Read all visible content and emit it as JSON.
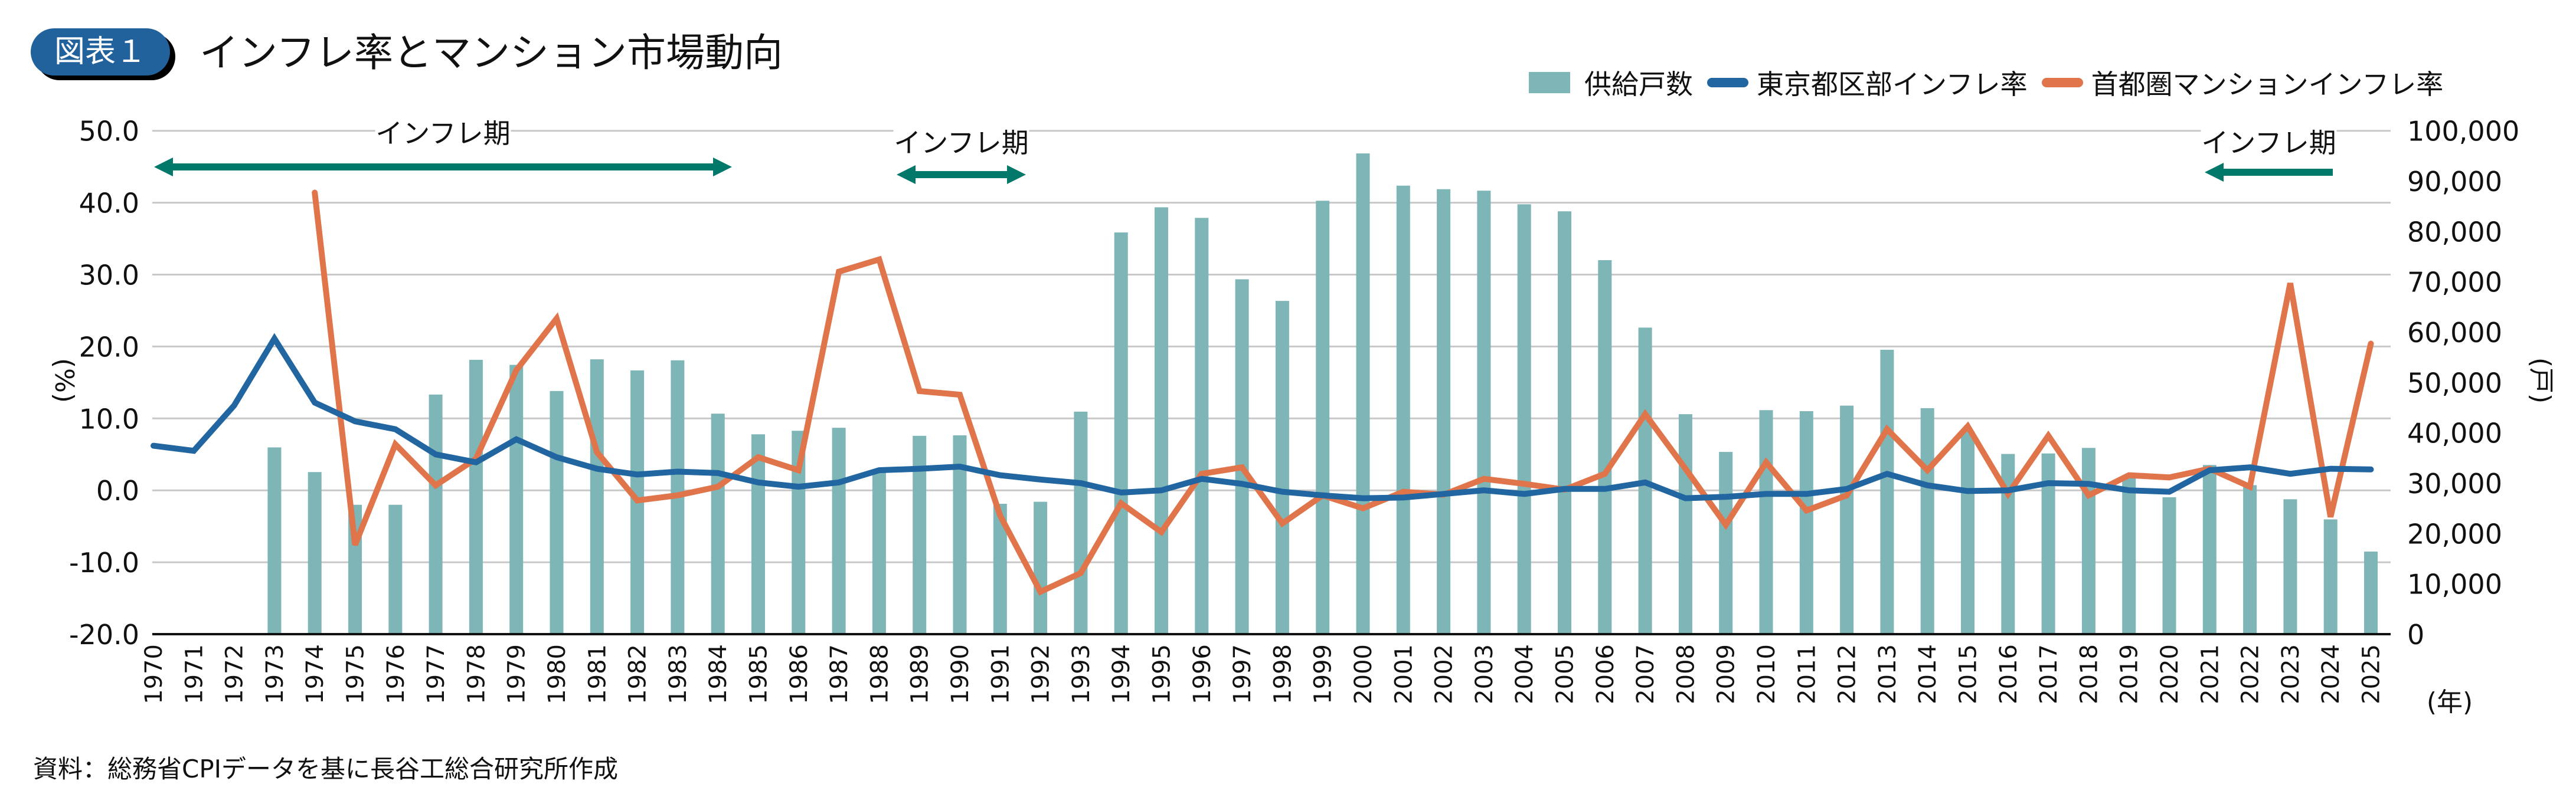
{
  "header": {
    "badge": "図表１",
    "title": "インフレ率とマンション市場動向"
  },
  "legend": {
    "bar_label": "供給戸数",
    "tokyo_label": "東京都区部インフレ率",
    "condo_label": "首都圏マンションインフレ率"
  },
  "source": "資料：総務省CPIデータを基に長谷工総合研究所作成",
  "colors": {
    "bar": "#7EB5B6",
    "tokyo": "#2166A0",
    "condo": "#E0744A",
    "arrow": "#00796B",
    "grid": "#C8C8C8",
    "badge": "#22629C"
  },
  "annotations": [
    {
      "label": "インフレ期",
      "from": 1970,
      "to": 1984,
      "direction": "both"
    },
    {
      "label": "インフレ期",
      "from": 1988,
      "to": 1991,
      "direction": "both"
    },
    {
      "label": "インフレ期",
      "from": 2023,
      "to": 2020,
      "direction": "left"
    }
  ],
  "chart_data": {
    "type": "bar+line",
    "title": "インフレ率とマンション市場動向",
    "categories": [
      "1970",
      "1971",
      "1972",
      "1973",
      "1974",
      "1975",
      "1976",
      "1977",
      "1978",
      "1979",
      "1980",
      "1981",
      "1982",
      "1983",
      "1984",
      "1985",
      "1986",
      "1987",
      "1988",
      "1989",
      "1990",
      "1991",
      "1992",
      "1993",
      "1994",
      "1995",
      "1996",
      "1997",
      "1998",
      "1999",
      "2000",
      "2001",
      "2002",
      "2003",
      "2004",
      "2005",
      "2006",
      "2007",
      "2008",
      "2009",
      "2010",
      "2011",
      "2012",
      "2013",
      "2014",
      "2015",
      "2016",
      "2017",
      "2018",
      "2019",
      "2020",
      "2021",
      "2022",
      "2023",
      "2024",
      "2025"
    ],
    "xlabel": "(年)",
    "ylabel_left": "(%)",
    "ylabel_right": "(戸)",
    "ylim_left": [
      -20,
      50
    ],
    "ylim_right": [
      0,
      100000
    ],
    "yticks_left": [
      "50.0",
      "40.0",
      "30.0",
      "20.0",
      "10.0",
      "0.0",
      "-10.0",
      "-20.0"
    ],
    "yticks_right": [
      "100,000",
      "90,000",
      "80,000",
      "70,000",
      "60,000",
      "50,000",
      "40,000",
      "30,000",
      "20,000",
      "10,000",
      "0"
    ],
    "grid": true,
    "legend_position": "top-right",
    "series": [
      {
        "name": "供給戸数",
        "type": "bar",
        "axis": "right",
        "values": [
          null,
          null,
          null,
          37100,
          32200,
          25700,
          25700,
          47600,
          54500,
          53500,
          48300,
          54600,
          52400,
          54400,
          43800,
          39700,
          40400,
          41000,
          32200,
          39400,
          39500,
          25900,
          26300,
          44200,
          79800,
          84800,
          82700,
          70500,
          66200,
          86100,
          95500,
          89100,
          88400,
          88100,
          85400,
          84000,
          74300,
          60900,
          43700,
          36200,
          44500,
          44300,
          45400,
          56500,
          44900,
          40300,
          35800,
          35900,
          37000,
          31100,
          27200,
          33600,
          29600,
          26800,
          22800,
          16400
        ]
      },
      {
        "name": "東京都区部インフレ率",
        "type": "line",
        "axis": "left",
        "values": [
          6.2,
          5.5,
          11.8,
          21.1,
          12.2,
          9.6,
          8.5,
          5.0,
          3.9,
          7.1,
          4.6,
          3.0,
          2.2,
          2.6,
          2.4,
          1.1,
          0.5,
          1.1,
          2.8,
          3.0,
          3.3,
          2.1,
          1.5,
          1.0,
          -0.3,
          0.0,
          1.6,
          0.9,
          -0.2,
          -0.7,
          -1.1,
          -1.0,
          -0.5,
          0.0,
          -0.5,
          0.2,
          0.2,
          1.1,
          -1.1,
          -0.9,
          -0.5,
          -0.5,
          0.2,
          2.3,
          0.7,
          -0.1,
          0.0,
          1.0,
          0.9,
          0.0,
          -0.2,
          2.8,
          3.2,
          2.3,
          3.0,
          2.9
        ]
      },
      {
        "name": "首都圏マンションインフレ率",
        "type": "line",
        "axis": "left",
        "values": [
          null,
          null,
          null,
          null,
          41.4,
          -7.6,
          6.4,
          0.7,
          4.4,
          16.7,
          23.9,
          5.3,
          -1.4,
          -0.7,
          0.5,
          4.6,
          2.8,
          30.4,
          32.1,
          13.8,
          13.3,
          -3.5,
          -14.1,
          -11.5,
          -1.8,
          -5.8,
          2.3,
          3.2,
          -4.6,
          -0.7,
          -2.5,
          -0.2,
          -0.6,
          1.6,
          0.9,
          0.1,
          2.3,
          10.6,
          3.0,
          -4.8,
          3.9,
          -2.8,
          -0.7,
          8.5,
          2.8,
          8.9,
          -0.5,
          7.6,
          -0.7,
          2.1,
          1.8,
          3.0,
          0.5,
          28.8,
          -3.7,
          20.4
        ]
      }
    ]
  }
}
